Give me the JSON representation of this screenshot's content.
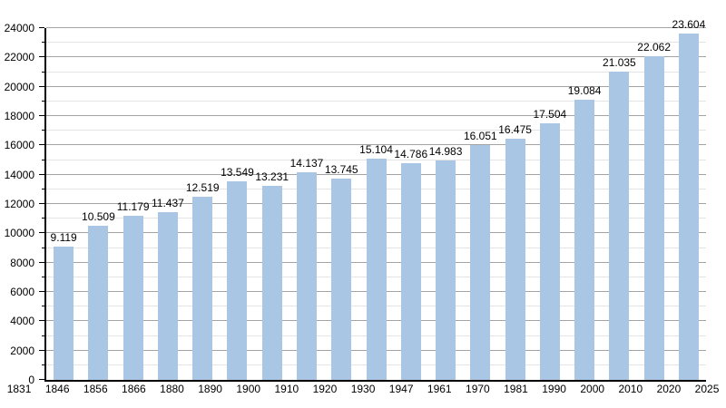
{
  "chart_data": {
    "type": "bar",
    "title": "",
    "xlabel": "",
    "ylabel": "",
    "categories": [
      "1831",
      "1846",
      "1856",
      "1866",
      "1880",
      "1890",
      "1900",
      "1910",
      "1920",
      "1930",
      "1947",
      "1961",
      "1970",
      "1981",
      "1990",
      "2000",
      "2010",
      "2020",
      "2025"
    ],
    "values": [
      9119,
      10509,
      11179,
      11437,
      12519,
      13549,
      13231,
      14137,
      13745,
      15104,
      14786,
      14983,
      16051,
      16475,
      17504,
      19084,
      21035,
      22062,
      23604
    ],
    "value_labels": [
      "9.119",
      "10.509",
      "11.179",
      "11.437",
      "12.519",
      "13.549",
      "13.231",
      "14.137",
      "13.745",
      "15.104",
      "14.786",
      "14.983",
      "16.051",
      "16.475",
      "17.504",
      "19.084",
      "21.035",
      "22.062",
      "23.604"
    ],
    "ylim": [
      0,
      24000
    ],
    "y_major_step": 2000,
    "y_minor_step": 1000,
    "y_tick_labels": [
      "0",
      "2000",
      "4000",
      "6000",
      "8000",
      "10000",
      "12000",
      "14000",
      "16000",
      "18000",
      "20000",
      "22000",
      "24000"
    ],
    "grid": "on",
    "legend_position": "none",
    "bar_color": "#a9c7e4",
    "grid_major_color": "#a3a3a3",
    "grid_minor_color": "#e4e4e4",
    "axis_color": "#000000",
    "text_color": "#000000"
  }
}
